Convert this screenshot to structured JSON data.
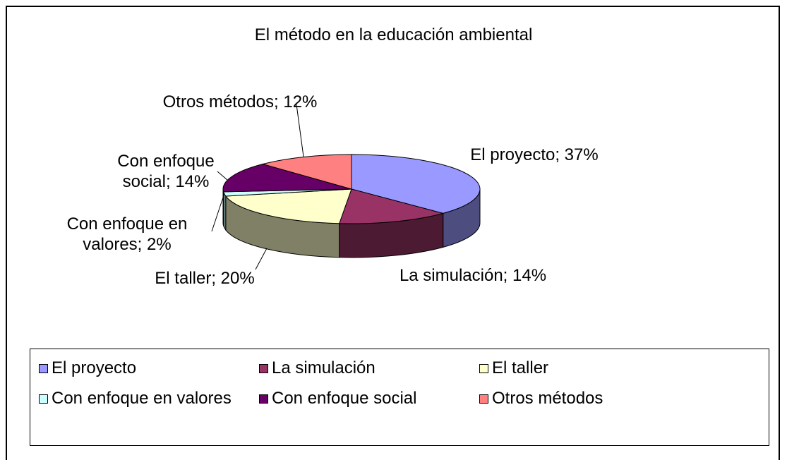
{
  "chart_data": {
    "type": "pie3d",
    "title": "El método en la educación ambiental",
    "categories": [
      "El proyecto",
      "La simulación",
      "El taller",
      "Con enfoque en valores",
      "Con enfoque social",
      "Otros métodos"
    ],
    "values": [
      37,
      14,
      20,
      2,
      14,
      12
    ],
    "value_labels": [
      "El proyecto; 37%",
      "La simulación; 14%",
      "El taller; 20%",
      "Con enfoque en valores; 2%",
      "Con enfoque social; 14%",
      "Otros métodos; 12%"
    ],
    "colors": [
      "#9999ff",
      "#993366",
      "#ffffcc",
      "#ccffff",
      "#660066",
      "#ff8080"
    ],
    "legend": "bottom"
  }
}
